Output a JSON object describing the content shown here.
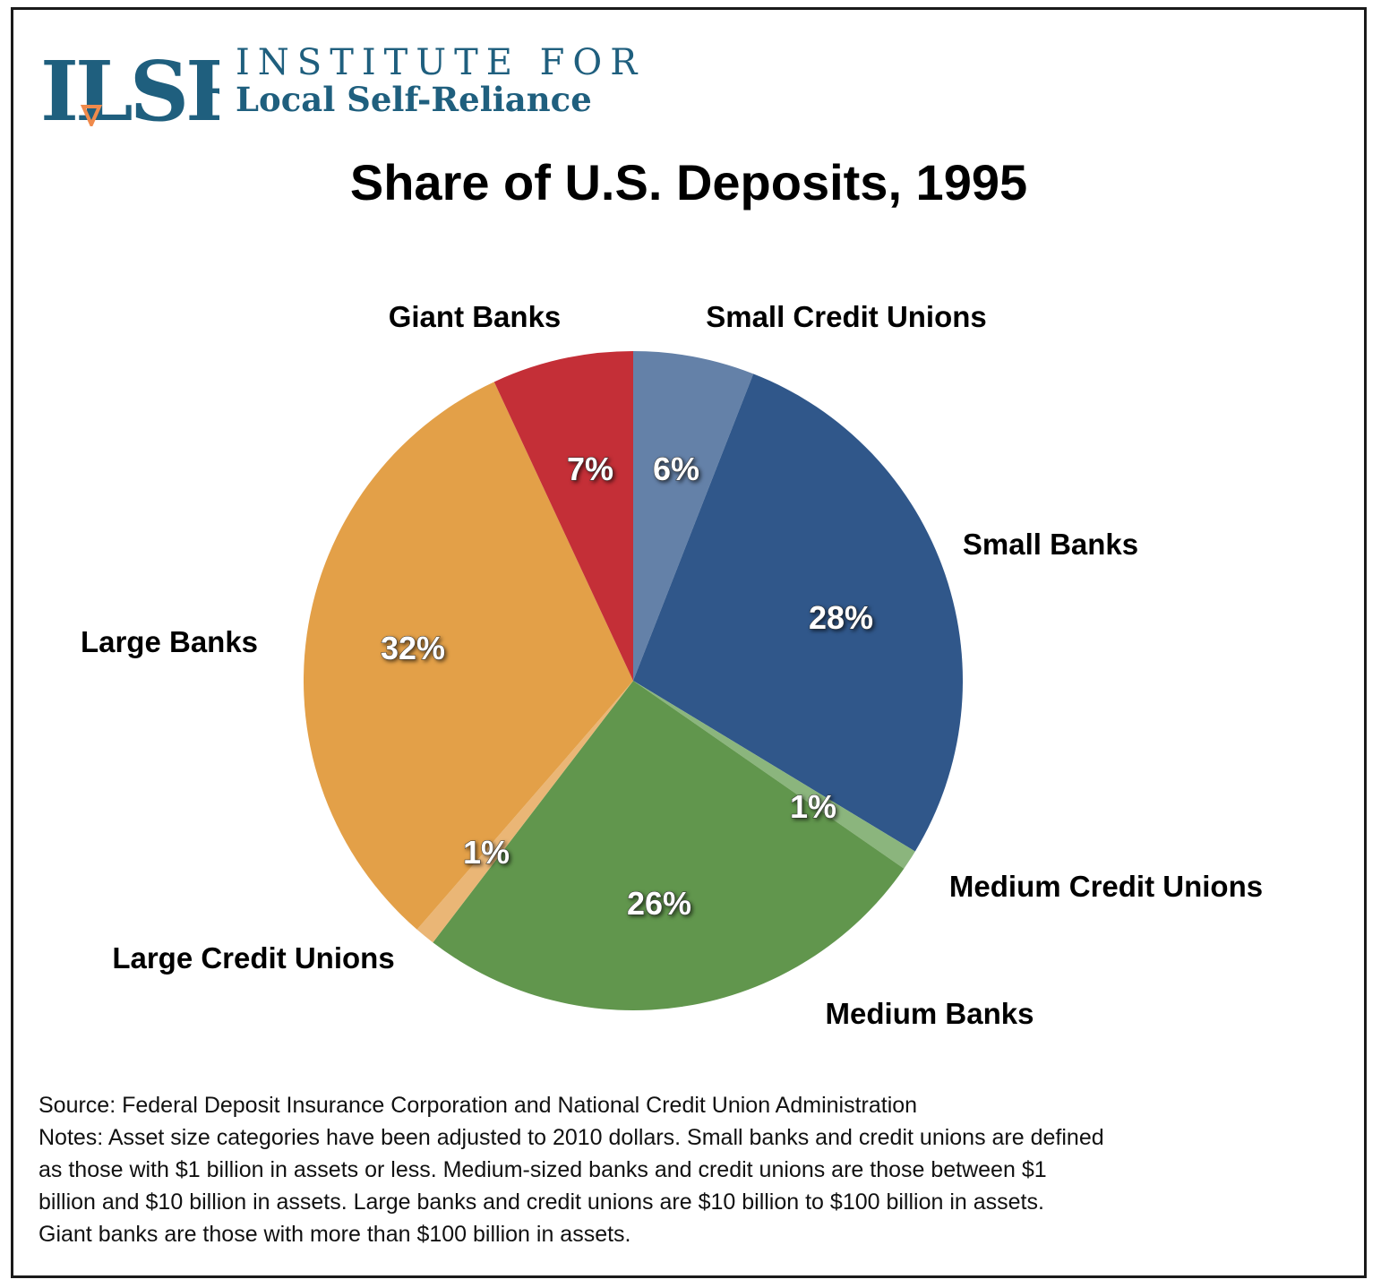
{
  "logo": {
    "mark": "ILSR",
    "line1": "INSTITUTE FOR",
    "line2": "Local Self-Reliance",
    "color": "#1f5f7e",
    "accent": "#f08a4b"
  },
  "chart_data": {
    "type": "pie",
    "title": "Share of U.S. Deposits, 1995",
    "start": "12 o'clock",
    "direction": "clockwise",
    "slices": [
      {
        "label": "Small Credit Unions",
        "value": 6,
        "display": "6%",
        "color": "#6481a8"
      },
      {
        "label": "Small Banks",
        "value": 28,
        "display": "28%",
        "color": "#30578a"
      },
      {
        "label": "Medium Credit Unions",
        "value": 1,
        "display": "1%",
        "color": "#8bb57d"
      },
      {
        "label": "Medium Banks",
        "value": 26,
        "display": "26%",
        "color": "#61964d"
      },
      {
        "label": "Large Credit Unions",
        "value": 1,
        "display": "1%",
        "color": "#eab676"
      },
      {
        "label": "Large Banks",
        "value": 32,
        "display": "32%",
        "color": "#e3a048"
      },
      {
        "label": "Giant Banks",
        "value": 7,
        "display": "7%",
        "color": "#c42f37"
      }
    ]
  },
  "notes": {
    "source": "Source: Federal Deposit Insurance Corporation and National Credit Union Administration",
    "line1": "Notes: Asset size categories have been adjusted to 2010 dollars.  Small banks and credit unions are defined",
    "line2": "as those with $1 billion in assets or less.  Medium-sized banks and credit unions are those between $1",
    "line3": "billion and $10 billion in assets.  Large banks and credit unions are $10 billion to $100 billion in assets.",
    "line4": "Giant banks are those with more than $100 billion in assets."
  }
}
